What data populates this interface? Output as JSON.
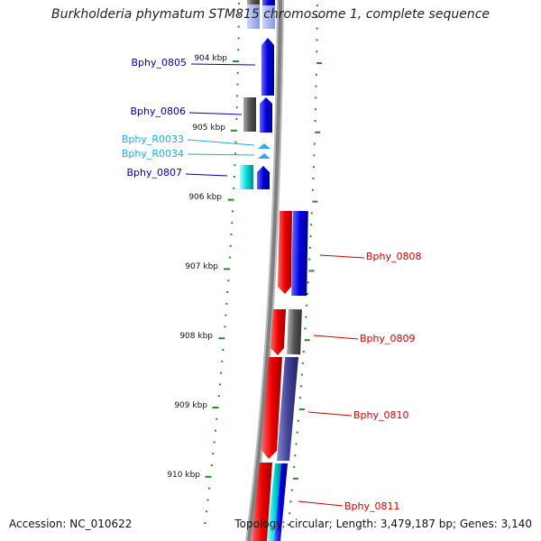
{
  "title": "Burkholderia phymatum STM815 chromosome 1, complete sequence",
  "footer": {
    "accession": "Accession: NC_010622",
    "summary": "Topology: circular; Length: 3,479,187 bp; Genes: 3,140"
  },
  "colors": {
    "forward_strand": "#0000cc",
    "reverse_strand": "#dd0000",
    "rna": "#22ccee",
    "pseudo": "#666666",
    "tick": "#2a8a2a",
    "backbone": "#808080"
  },
  "ticks": [
    "904 kbp",
    "905 kbp",
    "906 kbp",
    "907 kbp",
    "908 kbp",
    "909 kbp",
    "910 kbp"
  ],
  "genes_left": [
    {
      "id": "Bphy_0805",
      "color": "#0000cc"
    },
    {
      "id": "Bphy_0806",
      "color": "#0000cc"
    },
    {
      "id": "Bphy_R0033",
      "color": "#22aadd"
    },
    {
      "id": "Bphy_R0034",
      "color": "#22aadd"
    },
    {
      "id": "Bphy_0807",
      "color": "#0000cc"
    }
  ],
  "genes_right": [
    {
      "id": "Bphy_0808",
      "color": "#cc0000"
    },
    {
      "id": "Bphy_0809",
      "color": "#cc0000"
    },
    {
      "id": "Bphy_0810",
      "color": "#cc0000"
    },
    {
      "id": "Bphy_0811",
      "color": "#cc0000"
    }
  ]
}
